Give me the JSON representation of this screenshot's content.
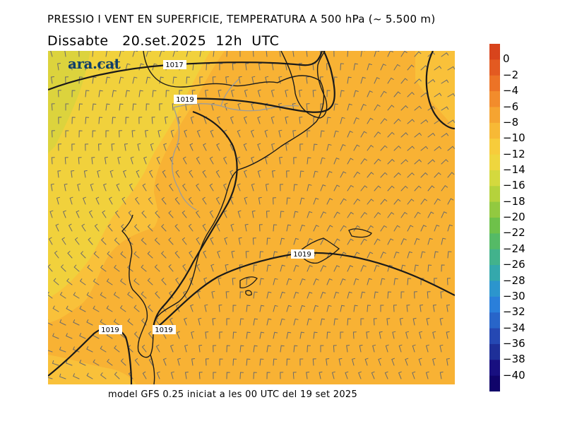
{
  "title": "PRESSIO I VENT EN SUPERFICIE, TEMPERATURA A 500 hPa (~ 5.500 m)",
  "subtitle": "Dissabte   20.set.2025  12h  UTC",
  "footer": "model GFS 0.25 iniciat a les 00 UTC del 19 set 2025",
  "brand": "ara.cat",
  "isobar_labels": [
    "1017",
    "1019",
    "1019",
    "1019",
    "1019"
  ],
  "colorbar": {
    "labels": [
      "0",
      "−2",
      "−4",
      "−6",
      "−8",
      "−10",
      "−12",
      "−14",
      "−16",
      "−18",
      "−20",
      "−22",
      "−24",
      "−26",
      "−28",
      "−30",
      "−32",
      "−34",
      "−36",
      "−38",
      "−40"
    ],
    "colors": [
      "#d8441c",
      "#e35a21",
      "#ec7326",
      "#f28c2c",
      "#f5a431",
      "#f7b936",
      "#f7cc3b",
      "#efd63e",
      "#d4d93e",
      "#b5d23c",
      "#92c940",
      "#6ec14a",
      "#55ba66",
      "#42b28c",
      "#34a8ac",
      "#2c95cd",
      "#2a7fda",
      "#2865c9",
      "#2548b3",
      "#1e2f98",
      "#180f80",
      "#10046a"
    ]
  },
  "temperature_field_colors": {
    "orange": "#f8b234",
    "light_orange": "#f9c13a",
    "yellow": "#f1d13c",
    "yellow_green": "#dcd33d"
  }
}
